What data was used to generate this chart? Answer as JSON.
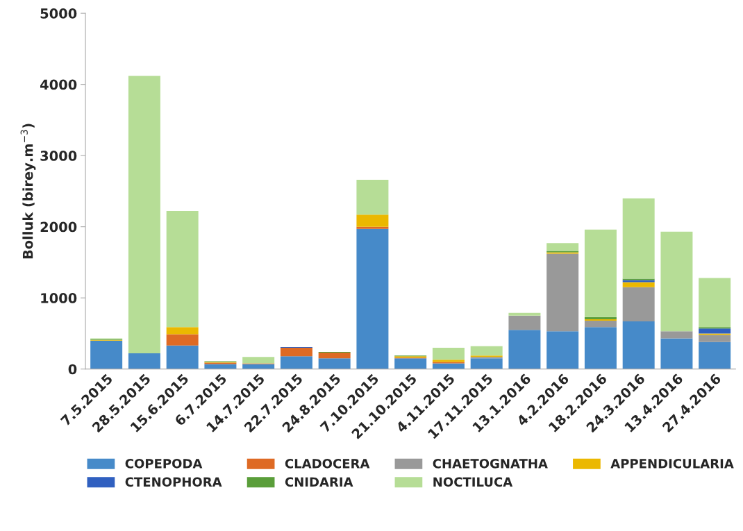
{
  "chart_data": {
    "type": "bar",
    "stacked": true,
    "ylabel": "Bolluk (birey.m$^{−3}$)",
    "categories": [
      "7.5.2015",
      "28.5.2015",
      "15.6.2015",
      "6.7.2015",
      "14.7.2015",
      "22.7.2015",
      "24.8.2015",
      "7.10.2015",
      "21.10.2015",
      "4.11.2015",
      "17.11.2015",
      "13.1.2016",
      "4.2.2016",
      "18.2.2016",
      "24.3.2016",
      "13.4.2016",
      "27.4.2016"
    ],
    "series": [
      {
        "name": "COPEPODA",
        "color": "#468ac9",
        "values": [
          400,
          220,
          330,
          70,
          70,
          180,
          150,
          1970,
          150,
          80,
          150,
          550,
          530,
          590,
          670,
          430,
          380
        ]
      },
      {
        "name": "CLADOCERA",
        "color": "#de6a24",
        "values": [
          0,
          0,
          160,
          20,
          10,
          120,
          80,
          30,
          10,
          20,
          0,
          0,
          0,
          0,
          0,
          0,
          0
        ]
      },
      {
        "name": "CHAETOGNATHA",
        "color": "#999999",
        "values": [
          0,
          0,
          0,
          0,
          0,
          0,
          0,
          0,
          0,
          0,
          20,
          200,
          1090,
          90,
          480,
          100,
          100
        ]
      },
      {
        "name": "APPENDICULARIA",
        "color": "#ebb800",
        "values": [
          10,
          0,
          100,
          10,
          0,
          0,
          0,
          170,
          20,
          30,
          20,
          0,
          20,
          20,
          70,
          0,
          20
        ]
      },
      {
        "name": "CTENOPHORA",
        "color": "#3060c0",
        "values": [
          0,
          0,
          0,
          0,
          0,
          10,
          0,
          0,
          0,
          0,
          0,
          0,
          0,
          0,
          30,
          0,
          70
        ]
      },
      {
        "name": "CNIDARIA",
        "color": "#5a9e3a",
        "values": [
          10,
          0,
          0,
          10,
          0,
          0,
          10,
          0,
          10,
          0,
          0,
          0,
          20,
          30,
          20,
          0,
          20
        ]
      },
      {
        "name": "NOCTILUCA",
        "color": "#b6dd96",
        "values": [
          10,
          3900,
          1630,
          0,
          90,
          0,
          0,
          490,
          0,
          170,
          130,
          40,
          110,
          1230,
          1130,
          1400,
          690
        ]
      }
    ],
    "ylim": [
      0,
      5000
    ],
    "yticks": [
      0,
      1000,
      2000,
      3000,
      4000,
      5000
    ],
    "grid": false,
    "legend": "bottom"
  }
}
